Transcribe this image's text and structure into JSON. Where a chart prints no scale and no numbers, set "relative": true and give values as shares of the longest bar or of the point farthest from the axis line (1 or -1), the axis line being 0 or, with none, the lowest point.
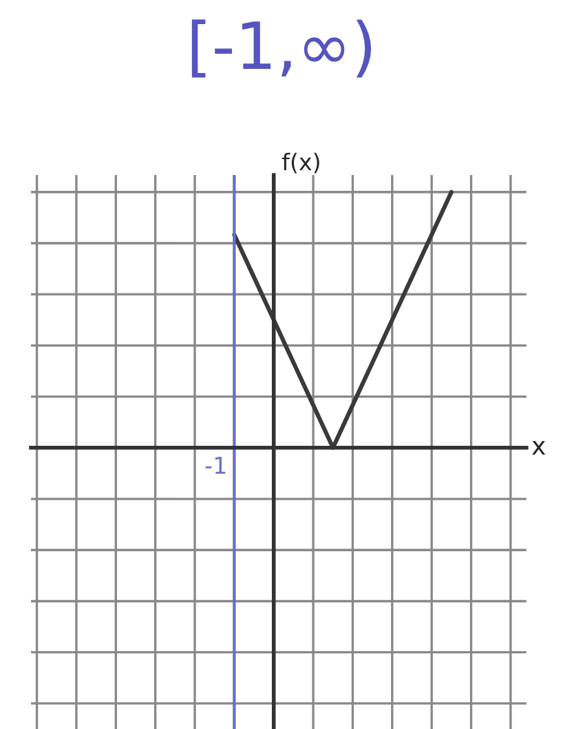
{
  "chart_data": {
    "type": "line",
    "title": "[-1,∞)",
    "xlabel": "x",
    "ylabel": "f(x)",
    "categories": [
      null,
      null,
      null,
      null,
      null,
      null,
      null,
      null,
      null,
      null,
      null,
      null,
      null,
      null,
      null,
      null,
      null,
      null,
      null,
      null,
      null,
      null,
      null,
      null,
      null
    ],
    "series": [
      {
        "color": "#3a3a3a",
        "values": [
          null,
          null,
          null,
          null,
          null,
          null,
          null,
          null,
          null,
          null,
          0.833,
          0.667,
          0.5,
          0.333,
          0.167,
          0,
          0.167,
          0.333,
          0.5,
          0.667,
          0.833,
          1,
          null,
          null,
          null
        ]
      }
    ],
    "relative": true,
    "ref_lines": [
      {
        "axis": "x",
        "label": "-1",
        "color": "#6a6ad0"
      }
    ],
    "grid": true,
    "line_style": "solid"
  }
}
